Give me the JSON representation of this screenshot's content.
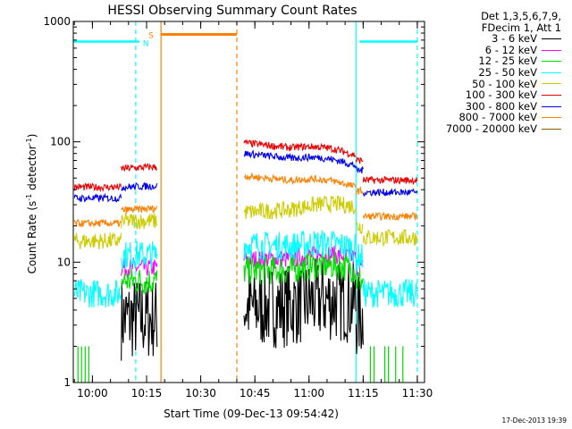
{
  "chart_data": {
    "type": "line",
    "title": "HESSI Observing Summary Count Rates",
    "xlabel": "Start Time (09-Dec-13 09:54:42)",
    "ylabel_main": "Count Rate (s",
    "ylabel_sup1": "-1",
    "ylabel_mid": " detector",
    "ylabel_sup2": "-1",
    "ylabel_end": ")",
    "yscale": "log",
    "ylim": [
      1,
      1000
    ],
    "xlim": [
      "09:54:42",
      "11:32:00"
    ],
    "xticks": [
      {
        "t": "10:00",
        "label": "10:00"
      },
      {
        "t": "10:15",
        "label": "10:15"
      },
      {
        "t": "10:30",
        "label": "10:30"
      },
      {
        "t": "10:45",
        "label": "10:45"
      },
      {
        "t": "11:00",
        "label": "11:00"
      },
      {
        "t": "11:15",
        "label": "11:15"
      },
      {
        "t": "11:30",
        "label": "11:30"
      }
    ],
    "yticks": [
      {
        "v": 1,
        "label": "1"
      },
      {
        "v": 10,
        "label": "10"
      },
      {
        "v": 100,
        "label": "100"
      },
      {
        "v": 1000,
        "label": "1000"
      }
    ],
    "legend_title": [
      "Det 1,3,5,6,7,9,",
      "FDecim 1, Att 1"
    ],
    "legend_placement": "right",
    "series": [
      {
        "name": "3 - 6 keV",
        "color": "#000000",
        "noise": 0.35,
        "segments": [
          [
            "10:08",
            "10:18",
            3.4,
            3.4
          ],
          [
            "10:42",
            "11:13",
            4.2,
            4.6
          ],
          [
            "11:13",
            "11:15",
            3.5,
            3.5
          ]
        ]
      },
      {
        "name": "6 - 12 keV",
        "color": "#ff00ff",
        "noise": 0.08,
        "segments": [
          [
            "10:08",
            "10:18",
            9.0,
            9.0
          ],
          [
            "10:42",
            "11:13",
            10.5,
            10.8
          ],
          [
            "11:13",
            "11:15",
            9.0,
            9.0
          ]
        ]
      },
      {
        "name": "12 - 25 keV",
        "color": "#00dd00",
        "noise": 0.12,
        "segments": [
          [
            "10:08",
            "10:18",
            7.0,
            7.0
          ],
          [
            "10:42",
            "11:13",
            8.5,
            8.8
          ],
          [
            "11:13",
            "11:15",
            7.0,
            7.0
          ]
        ]
      },
      {
        "name": "25 - 50 keV",
        "color": "#00ffff",
        "noise": 0.12,
        "segments": [
          [
            "09:55",
            "10:08",
            5.5,
            5.5
          ],
          [
            "10:08",
            "10:18",
            11.5,
            11.5
          ],
          [
            "10:42",
            "11:13",
            14.0,
            13.0
          ],
          [
            "11:13",
            "11:15",
            11.0,
            11.0
          ],
          [
            "11:15",
            "11:30",
            5.5,
            5.5
          ]
        ]
      },
      {
        "name": "50 - 100 keV",
        "color": "#cccc00",
        "noise": 0.07,
        "segments": [
          [
            "09:55",
            "10:08",
            15.0,
            15.0
          ],
          [
            "10:08",
            "10:18",
            22.0,
            22.0
          ],
          [
            "10:42",
            "11:13",
            26.0,
            29.0
          ],
          [
            "11:13",
            "11:15",
            20.0,
            20.0
          ],
          [
            "11:15",
            "11:30",
            16.0,
            16.0
          ]
        ]
      },
      {
        "name": "100 - 300 keV",
        "color": "#ee0000",
        "noise": 0.03,
        "segments": [
          [
            "09:55",
            "10:08",
            42.0,
            42.0
          ],
          [
            "10:08",
            "10:18",
            60.0,
            62.0
          ],
          [
            "10:42",
            "11:13",
            98.0,
            77.0
          ],
          [
            "11:13",
            "11:15",
            70.0,
            70.0
          ],
          [
            "11:15",
            "11:30",
            48.0,
            48.0
          ]
        ]
      },
      {
        "name": "300 - 800 keV",
        "color": "#0000ee",
        "noise": 0.03,
        "segments": [
          [
            "09:55",
            "10:08",
            34.0,
            34.0
          ],
          [
            "10:08",
            "10:18",
            42.0,
            43.0
          ],
          [
            "10:42",
            "11:13",
            80.0,
            63.0
          ],
          [
            "11:13",
            "11:15",
            58.0,
            58.0
          ],
          [
            "11:15",
            "11:30",
            38.0,
            38.0
          ]
        ]
      },
      {
        "name": "800 - 7000 keV",
        "color": "#ff8000",
        "noise": 0.03,
        "segments": [
          [
            "09:55",
            "10:08",
            21.0,
            21.0
          ],
          [
            "10:08",
            "10:18",
            27.0,
            28.0
          ],
          [
            "10:42",
            "11:13",
            52.0,
            42.0
          ],
          [
            "11:13",
            "11:15",
            39.0,
            39.0
          ],
          [
            "11:15",
            "11:30",
            24.0,
            24.0
          ]
        ]
      },
      {
        "name": "7000 - 20000 keV",
        "color": "#806000",
        "noise": 0.0,
        "segments": []
      }
    ],
    "attenuator_flag": {
      "color": "#ff8000",
      "t_start": "10:19",
      "t_end": "10:40",
      "value": 780,
      "label": "S"
    },
    "night_flag": {
      "color": "#00ffff",
      "label": "N",
      "segments": [
        [
          "09:54:42",
          "10:13",
          680
        ],
        [
          "11:14",
          "11:30",
          680
        ]
      ]
    },
    "green_spikes": {
      "color": "#00dd00",
      "times": [
        "09:56",
        "09:57",
        "09:58",
        "09:59",
        "11:17",
        "11:18",
        "11:21",
        "11:22",
        "11:24",
        "11:26"
      ],
      "value": 2.0
    },
    "vlines": [
      {
        "t": "10:12",
        "color": "#00ffff",
        "style": "dashed"
      },
      {
        "t": "10:19",
        "color": "#ff8000",
        "style": "solid"
      },
      {
        "t": "10:40",
        "color": "#ff8000",
        "style": "dashed"
      },
      {
        "t": "11:13",
        "color": "#00ffff",
        "style": "solid"
      },
      {
        "t": "11:30",
        "color": "#00ffff",
        "style": "dashed"
      }
    ],
    "timestamp": "17-Dec-2013 19:39"
  }
}
